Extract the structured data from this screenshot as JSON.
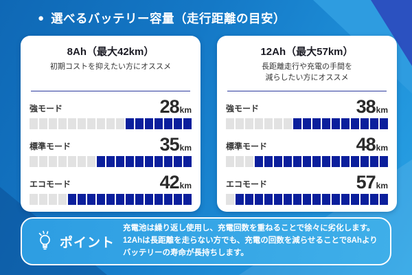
{
  "header": {
    "bullet": "●",
    "title": "選べるバッテリー容量（走行距離の目安）"
  },
  "cards": [
    {
      "title": "8Ah（最大42km）",
      "subtitle": "初期コストを抑えたい方にオススメ",
      "modes": [
        {
          "label": "強モード",
          "value": "28",
          "unit": "km",
          "total_blocks": 17,
          "filled_blocks": 7
        },
        {
          "label": "標準モード",
          "value": "35",
          "unit": "km",
          "total_blocks": 17,
          "filled_blocks": 10
        },
        {
          "label": "エコモード",
          "value": "42",
          "unit": "km",
          "total_blocks": 17,
          "filled_blocks": 13
        }
      ]
    },
    {
      "title": "12Ah（最大57km）",
      "subtitle": "長距離走行や充電の手間を\n減らしたい方にオススメ",
      "modes": [
        {
          "label": "強モード",
          "value": "38",
          "unit": "km",
          "total_blocks": 17,
          "filled_blocks": 10
        },
        {
          "label": "標準モード",
          "value": "48",
          "unit": "km",
          "total_blocks": 17,
          "filled_blocks": 14
        },
        {
          "label": "エコモード",
          "value": "57",
          "unit": "km",
          "total_blocks": 17,
          "filled_blocks": 16
        }
      ]
    }
  ],
  "point": {
    "icon": "lightbulb-icon",
    "label": "ポイント",
    "text": "充電池は繰り返し使用し、充電回数を重ねることで徐々に劣化します。\n12Ahは長距離を走らない方でも、充電の回数を減らせることで8Ahより\nバッテリーの寿命が長持ちします。"
  },
  "colors": {
    "background_blue": "#1274c3",
    "card_bg": "#ffffff",
    "filled_block": "#0b1f9c",
    "empty_block": "#e2e2e2",
    "divider_navy": "#2c3a9e",
    "point_box_blue": "#35a6e7",
    "text_dark": "#2b2b2b",
    "text_white": "#ffffff"
  },
  "chart_data": [
    {
      "type": "bar",
      "title": "8Ah（最大42km）",
      "categories": [
        "強モード",
        "標準モード",
        "エコモード"
      ],
      "values": [
        28,
        35,
        42
      ],
      "unit": "km",
      "ylim": [
        0,
        42
      ],
      "note": "segmented block gauge, 17 blocks per row, filled from right"
    },
    {
      "type": "bar",
      "title": "12Ah（最大57km）",
      "categories": [
        "強モード",
        "標準モード",
        "エコモード"
      ],
      "values": [
        38,
        48,
        57
      ],
      "unit": "km",
      "ylim": [
        0,
        57
      ],
      "note": "segmented block gauge, 17 blocks per row, filled from right"
    }
  ]
}
